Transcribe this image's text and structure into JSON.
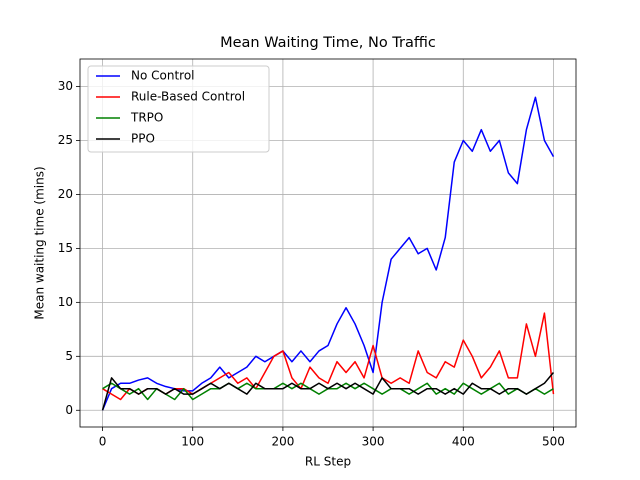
{
  "chart_data": {
    "type": "line",
    "title": "Mean Waiting Time, No Traffic",
    "x_label": "RL Step",
    "y_label": "Mean waiting time (mins)",
    "x": [
      0,
      10,
      20,
      30,
      40,
      50,
      60,
      70,
      80,
      90,
      100,
      110,
      120,
      130,
      140,
      150,
      160,
      170,
      180,
      190,
      200,
      210,
      220,
      230,
      240,
      250,
      260,
      270,
      280,
      290,
      300,
      310,
      320,
      330,
      340,
      350,
      360,
      370,
      380,
      390,
      400,
      410,
      420,
      430,
      440,
      450,
      460,
      470,
      480,
      490,
      500
    ],
    "series": [
      {
        "name": "No Control",
        "color": "#0000ff",
        "values": [
          0,
          2,
          2.5,
          2.5,
          2.8,
          3,
          2.5,
          2.2,
          2,
          1.8,
          1.8,
          2.5,
          3,
          4,
          3,
          3.5,
          4,
          5,
          4.5,
          5,
          5.5,
          4.5,
          5.5,
          4.5,
          5.5,
          6,
          8,
          9.5,
          8,
          6,
          3.5,
          10,
          14,
          15,
          16,
          14.5,
          15,
          13,
          16,
          23,
          25,
          24,
          26,
          24,
          25,
          22,
          21,
          26,
          29,
          25,
          23.5
        ]
      },
      {
        "name": "Rule-Based Control",
        "color": "#ff0000",
        "values": [
          2,
          1.5,
          1,
          2,
          1.5,
          2,
          2,
          1.5,
          2,
          2,
          1.5,
          2,
          2.5,
          3,
          3.5,
          2.5,
          3,
          2,
          3.5,
          5,
          5.5,
          3,
          2,
          4,
          3,
          2.5,
          4.5,
          3.5,
          4.5,
          3,
          6,
          3,
          2.5,
          3,
          2.5,
          5.5,
          3.5,
          3,
          4.5,
          4,
          6.5,
          5,
          3,
          4,
          5.5,
          3,
          3,
          8,
          5,
          9,
          1.5
        ]
      },
      {
        "name": "TRPO",
        "color": "#008000",
        "values": [
          2,
          2.5,
          2,
          1.5,
          2,
          1,
          2,
          1.5,
          1,
          2,
          1,
          1.5,
          2,
          2,
          2.5,
          2,
          2.5,
          2,
          2,
          2,
          2.5,
          2,
          2.5,
          2,
          1.5,
          2,
          2,
          2.5,
          2,
          2.5,
          2,
          1.5,
          2,
          2,
          1.5,
          2,
          2.5,
          1.5,
          2,
          1.5,
          2.5,
          2,
          1.5,
          2,
          2.5,
          1.5,
          2,
          1.5,
          2,
          1.5,
          2
        ]
      },
      {
        "name": "PPO",
        "color": "#000000",
        "values": [
          0,
          3,
          2,
          2,
          1.5,
          2,
          2,
          1.5,
          2,
          1.5,
          1.5,
          2,
          2.5,
          2,
          2.5,
          2,
          1.5,
          2.5,
          2,
          2,
          2,
          2.5,
          2,
          2,
          2.5,
          2,
          2.5,
          2,
          2.5,
          2,
          1.5,
          3,
          2,
          2,
          2,
          1.5,
          2,
          2,
          1.5,
          2,
          1.5,
          2.5,
          2,
          2,
          1.5,
          2,
          2,
          1.5,
          2,
          2.5,
          3.5
        ]
      }
    ],
    "xlim": [
      -25,
      525
    ],
    "ylim": [
      -1.55,
      32.55
    ],
    "xticks": [
      0,
      100,
      200,
      300,
      400,
      500
    ],
    "yticks": [
      0,
      5,
      10,
      15,
      20,
      25,
      30
    ],
    "grid": true,
    "legend": "upper-left"
  }
}
